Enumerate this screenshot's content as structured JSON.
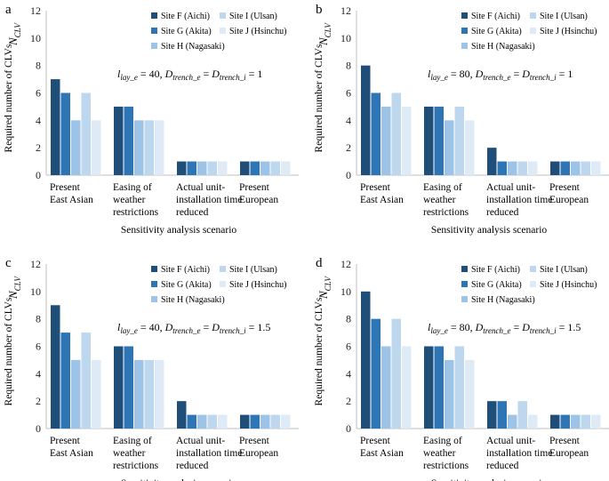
{
  "figure": {
    "xlabel": "Sensitivity analysis scenario",
    "ylabel": "Required number of CLVs",
    "y_symbol": "N",
    "y_symbol_sub": "CLV"
  },
  "colors": [
    "#1f4e79",
    "#2e75b6",
    "#9dc3e6",
    "#bdd7ee",
    "#deebf7"
  ],
  "chart_data": [
    {
      "type": "bar",
      "panel_label": "a",
      "parameters": "l_lay_e = 40, D_trench_e = D_trench_i = 1",
      "param_text": {
        "l": "l",
        "l_sub": "lay_e",
        "l_val": " = 40, ",
        "d1": "D",
        "d1_sub": "trench_e",
        "eq": " = ",
        "d2": "D",
        "d2_sub": "trench_i",
        "d_val": " = 1"
      },
      "categories": [
        [
          "Present",
          "East Asian"
        ],
        [
          "Easing of",
          "weather",
          "restrictions"
        ],
        [
          "Actual unit-",
          "installation time",
          "reduced"
        ],
        [
          "Present",
          "European"
        ]
      ],
      "series": [
        {
          "name": "Site F (Aichi)",
          "values": [
            7,
            5,
            1,
            1
          ]
        },
        {
          "name": "Site G (Akita)",
          "values": [
            6,
            5,
            1,
            1
          ]
        },
        {
          "name": "Site H (Nagasaki)",
          "values": [
            4,
            4,
            1,
            1
          ]
        },
        {
          "name": "Site I (Ulsan)",
          "values": [
            6,
            4,
            1,
            1
          ]
        },
        {
          "name": "Site J (Hsinchu)",
          "values": [
            4,
            4,
            1,
            1
          ]
        }
      ],
      "ylim": [
        0,
        12
      ],
      "yticks": [
        0,
        2,
        4,
        6,
        8,
        10,
        12
      ],
      "xlabel": "Sensitivity analysis scenario",
      "ylabel": "Required number of CLVs"
    },
    {
      "type": "bar",
      "panel_label": "b",
      "parameters": "l_lay_e = 80, D_trench_e = D_trench_i = 1",
      "param_text": {
        "l": "l",
        "l_sub": "lay_e",
        "l_val": " = 80, ",
        "d1": "D",
        "d1_sub": "trench_e",
        "eq": " = ",
        "d2": "D",
        "d2_sub": "trench_i",
        "d_val": " = 1"
      },
      "categories": [
        [
          "Present",
          "East Asian"
        ],
        [
          "Easing of",
          "weather",
          "restrictions"
        ],
        [
          "Actual unit-",
          "installation time",
          "reduced"
        ],
        [
          "Present",
          "European"
        ]
      ],
      "series": [
        {
          "name": "Site F (Aichi)",
          "values": [
            8,
            5,
            2,
            1
          ]
        },
        {
          "name": "Site G (Akita)",
          "values": [
            6,
            5,
            1,
            1
          ]
        },
        {
          "name": "Site H (Nagasaki)",
          "values": [
            5,
            4,
            1,
            1
          ]
        },
        {
          "name": "Site I (Ulsan)",
          "values": [
            6,
            5,
            1,
            1
          ]
        },
        {
          "name": "Site J (Hsinchu)",
          "values": [
            5,
            4,
            1,
            1
          ]
        }
      ],
      "ylim": [
        0,
        12
      ],
      "yticks": [
        0,
        2,
        4,
        6,
        8,
        10,
        12
      ],
      "xlabel": "Sensitivity analysis scenario",
      "ylabel": "Required number of CLVs"
    },
    {
      "type": "bar",
      "panel_label": "c",
      "parameters": "l_lay_e = 40, D_trench_e = D_trench_i = 1.5",
      "param_text": {
        "l": "l",
        "l_sub": "lay_e",
        "l_val": " = 40, ",
        "d1": "D",
        "d1_sub": "trench_e",
        "eq": " = ",
        "d2": "D",
        "d2_sub": "trench_i",
        "d_val": " = 1.5"
      },
      "categories": [
        [
          "Present",
          "East Asian"
        ],
        [
          "Easing of",
          "weather",
          "restrictions"
        ],
        [
          "Actual unit-",
          "installation time",
          "reduced"
        ],
        [
          "Present",
          "European"
        ]
      ],
      "series": [
        {
          "name": "Site F (Aichi)",
          "values": [
            9,
            6,
            2,
            1
          ]
        },
        {
          "name": "Site G (Akita)",
          "values": [
            7,
            6,
            1,
            1
          ]
        },
        {
          "name": "Site H (Nagasaki)",
          "values": [
            5,
            5,
            1,
            1
          ]
        },
        {
          "name": "Site I (Ulsan)",
          "values": [
            7,
            5,
            1,
            1
          ]
        },
        {
          "name": "Site J (Hsinchu)",
          "values": [
            5,
            5,
            1,
            1
          ]
        }
      ],
      "ylim": [
        0,
        12
      ],
      "yticks": [
        0,
        2,
        4,
        6,
        8,
        10,
        12
      ],
      "xlabel": "Sensitivity analysis scenario",
      "ylabel": "Required number of CLVs"
    },
    {
      "type": "bar",
      "panel_label": "d",
      "parameters": "l_lay_e = 80, D_trench_e = D_trench_i = 1.5",
      "param_text": {
        "l": "l",
        "l_sub": "lay_e",
        "l_val": " = 80, ",
        "d1": "D",
        "d1_sub": "trench_e",
        "eq": " = ",
        "d2": "D",
        "d2_sub": "trench_i",
        "d_val": " = 1.5"
      },
      "categories": [
        [
          "Present",
          "East Asian"
        ],
        [
          "Easing of",
          "weather",
          "restrictions"
        ],
        [
          "Actual unit-",
          "installation time",
          "reduced"
        ],
        [
          "Present",
          "European"
        ]
      ],
      "series": [
        {
          "name": "Site F (Aichi)",
          "values": [
            10,
            6,
            2,
            1
          ]
        },
        {
          "name": "Site G (Akita)",
          "values": [
            8,
            6,
            2,
            1
          ]
        },
        {
          "name": "Site H (Nagasaki)",
          "values": [
            6,
            5,
            1,
            1
          ]
        },
        {
          "name": "Site I (Ulsan)",
          "values": [
            8,
            6,
            2,
            1
          ]
        },
        {
          "name": "Site J (Hsinchu)",
          "values": [
            6,
            5,
            1,
            1
          ]
        }
      ],
      "ylim": [
        0,
        12
      ],
      "yticks": [
        0,
        2,
        4,
        6,
        8,
        10,
        12
      ],
      "xlabel": "Sensitivity analysis scenario",
      "ylabel": "Required number of CLVs"
    }
  ]
}
